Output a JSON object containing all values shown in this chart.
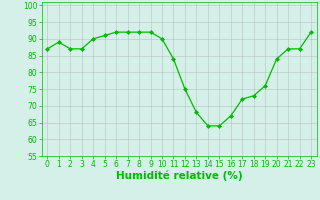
{
  "x": [
    0,
    1,
    2,
    3,
    4,
    5,
    6,
    7,
    8,
    9,
    10,
    11,
    12,
    13,
    14,
    15,
    16,
    17,
    18,
    19,
    20,
    21,
    22,
    23
  ],
  "y": [
    87,
    89,
    87,
    87,
    90,
    91,
    92,
    92,
    92,
    92,
    90,
    84,
    75,
    68,
    64,
    64,
    67,
    72,
    73,
    76,
    84,
    87,
    87,
    92
  ],
  "line_color": "#00bb00",
  "marker_color": "#00bb00",
  "bg_color": "#d4f0e8",
  "grid_color": "#b0b0b0",
  "xlabel": "Humidité relative (%)",
  "xlabel_color": "#00bb00",
  "ylim": [
    55,
    101
  ],
  "yticks": [
    55,
    60,
    65,
    70,
    75,
    80,
    85,
    90,
    95,
    100
  ],
  "xlim": [
    -0.5,
    23.5
  ],
  "xticks": [
    0,
    1,
    2,
    3,
    4,
    5,
    6,
    7,
    8,
    9,
    10,
    11,
    12,
    13,
    14,
    15,
    16,
    17,
    18,
    19,
    20,
    21,
    22,
    23
  ],
  "tick_color": "#00bb00",
  "tick_fontsize": 5.5,
  "xlabel_fontsize": 7.5
}
